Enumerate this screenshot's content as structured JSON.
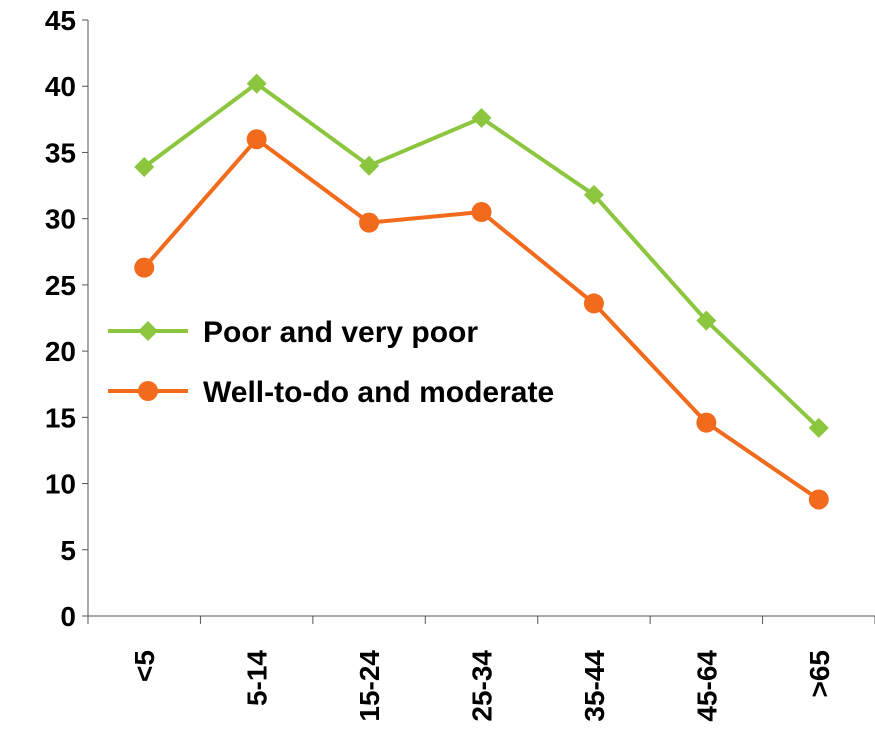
{
  "chart_data": {
    "type": "line",
    "title": "",
    "xlabel": "",
    "ylabel": "",
    "categories": [
      "<5",
      "5-14",
      "15-24",
      "25-34",
      "35-44",
      "45-64",
      ">65"
    ],
    "ylim": [
      0,
      45
    ],
    "yticks": [
      "0",
      "5",
      "10",
      "15",
      "20",
      "25",
      "30",
      "35",
      "40",
      "45"
    ],
    "grid": false,
    "legend_position": "center-left",
    "series": [
      {
        "name": "Poor and very poor",
        "color": "#8CC63F",
        "marker": "diamond",
        "values": [
          33.9,
          40.2,
          34.0,
          37.6,
          31.8,
          22.3,
          14.2
        ]
      },
      {
        "name": "Well-to-do and moderate",
        "color": "#F26A1B",
        "marker": "circle",
        "values": [
          26.3,
          36.0,
          29.7,
          30.5,
          23.6,
          14.6,
          8.8
        ]
      }
    ]
  }
}
